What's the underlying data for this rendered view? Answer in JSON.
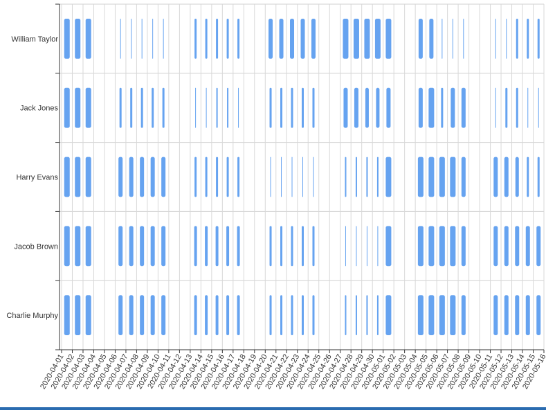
{
  "chart_data": {
    "type": "timeline",
    "categories": [
      "William Taylor",
      "Jack Jones",
      "Harry Evans",
      "Jacob Brown",
      "Charlie Murphy"
    ],
    "x": [
      "2020-04-01",
      "2020-04-02",
      "2020-04-03",
      "2020-04-04",
      "2020-04-05",
      "2020-04-06",
      "2020-04-07",
      "2020-04-08",
      "2020-04-09",
      "2020-04-10",
      "2020-04-11",
      "2020-04-12",
      "2020-04-13",
      "2020-04-14",
      "2020-04-15",
      "2020-04-16",
      "2020-04-17",
      "2020-04-18",
      "2020-04-19",
      "2020-04-20",
      "2020-04-21",
      "2020-04-22",
      "2020-04-23",
      "2020-04-24",
      "2020-04-25",
      "2020-04-26",
      "2020-04-27",
      "2020-04-28",
      "2020-04-29",
      "2020-04-30",
      "2020-05-01",
      "2020-05-02",
      "2020-05-03",
      "2020-05-04",
      "2020-05-05",
      "2020-05-06",
      "2020-05-07",
      "2020-05-08",
      "2020-05-09",
      "2020-05-10",
      "2020-05-11",
      "2020-05-12",
      "2020-05-13",
      "2020-05-14",
      "2020-05-15"
    ],
    "color": "#66a3f0",
    "series": [
      {
        "name": "William Taylor",
        "values": [
          8,
          8,
          8,
          null,
          null,
          1,
          1,
          1,
          1,
          1,
          null,
          null,
          3,
          3,
          3,
          3,
          3,
          null,
          null,
          6,
          6,
          6,
          6,
          6,
          null,
          null,
          8,
          8,
          8,
          8,
          8,
          null,
          null,
          6,
          6,
          1,
          1,
          1,
          null,
          null,
          1,
          1,
          3,
          3,
          3
        ]
      },
      {
        "name": "Jack Jones",
        "values": [
          8,
          8,
          8,
          null,
          null,
          3,
          3,
          3,
          3,
          3,
          null,
          null,
          1,
          1,
          2,
          2,
          1,
          null,
          null,
          3,
          3,
          3,
          3,
          3,
          null,
          null,
          6,
          6,
          5,
          5,
          6,
          null,
          null,
          6,
          8,
          3,
          6,
          6,
          null,
          null,
          1,
          3,
          3,
          1,
          1
        ]
      },
      {
        "name": "Harry Evans",
        "values": [
          8,
          8,
          8,
          null,
          null,
          6,
          6,
          6,
          6,
          6,
          null,
          null,
          3,
          3,
          3,
          3,
          3,
          null,
          null,
          1,
          1,
          1,
          1,
          1,
          null,
          null,
          2,
          2,
          2,
          2,
          8,
          null,
          null,
          8,
          8,
          8,
          8,
          6,
          null,
          null,
          6,
          6,
          5,
          3,
          3
        ]
      },
      {
        "name": "Jacob Brown",
        "values": [
          8,
          8,
          8,
          null,
          null,
          6,
          6,
          6,
          6,
          6,
          null,
          null,
          4,
          4,
          4,
          4,
          4,
          null,
          null,
          3,
          3,
          3,
          3,
          3,
          null,
          null,
          1,
          1,
          1,
          1,
          8,
          null,
          null,
          8,
          8,
          8,
          8,
          6,
          null,
          null,
          6,
          6,
          6,
          6,
          6
        ]
      },
      {
        "name": "Charlie Murphy",
        "values": [
          8,
          8,
          8,
          null,
          null,
          6,
          6,
          6,
          6,
          6,
          null,
          null,
          4,
          4,
          4,
          4,
          4,
          null,
          null,
          3,
          3,
          3,
          3,
          3,
          null,
          null,
          2,
          2,
          2,
          2,
          8,
          null,
          null,
          8,
          8,
          8,
          8,
          6,
          null,
          null,
          6,
          6,
          6,
          6,
          6
        ]
      }
    ],
    "xlim": [
      "2020-04-01",
      "2020-05-16"
    ],
    "xticks": [
      "2020-04-01",
      "2020-04-02",
      "2020-04-03",
      "2020-04-04",
      "2020-04-05",
      "2020-04-06",
      "2020-04-07",
      "2020-04-08",
      "2020-04-09",
      "2020-04-10",
      "2020-04-11",
      "2020-04-12",
      "2020-04-13",
      "2020-04-14",
      "2020-04-15",
      "2020-04-16",
      "2020-04-17",
      "2020-04-18",
      "2020-04-19",
      "2020-04-20",
      "2020-04-21",
      "2020-04-22",
      "2020-04-23",
      "2020-04-24",
      "2020-04-25",
      "2020-04-26",
      "2020-04-27",
      "2020-04-28",
      "2020-04-29",
      "2020-04-30",
      "2020-05-01",
      "2020-05-02",
      "2020-05-03",
      "2020-05-04",
      "2020-05-05",
      "2020-05-06",
      "2020-05-07",
      "2020-05-08",
      "2020-05-09",
      "2020-05-10",
      "2020-05-11",
      "2020-05-12",
      "2020-05-13",
      "2020-05-14",
      "2020-05-15",
      "2020-05-16"
    ],
    "grid": true
  }
}
